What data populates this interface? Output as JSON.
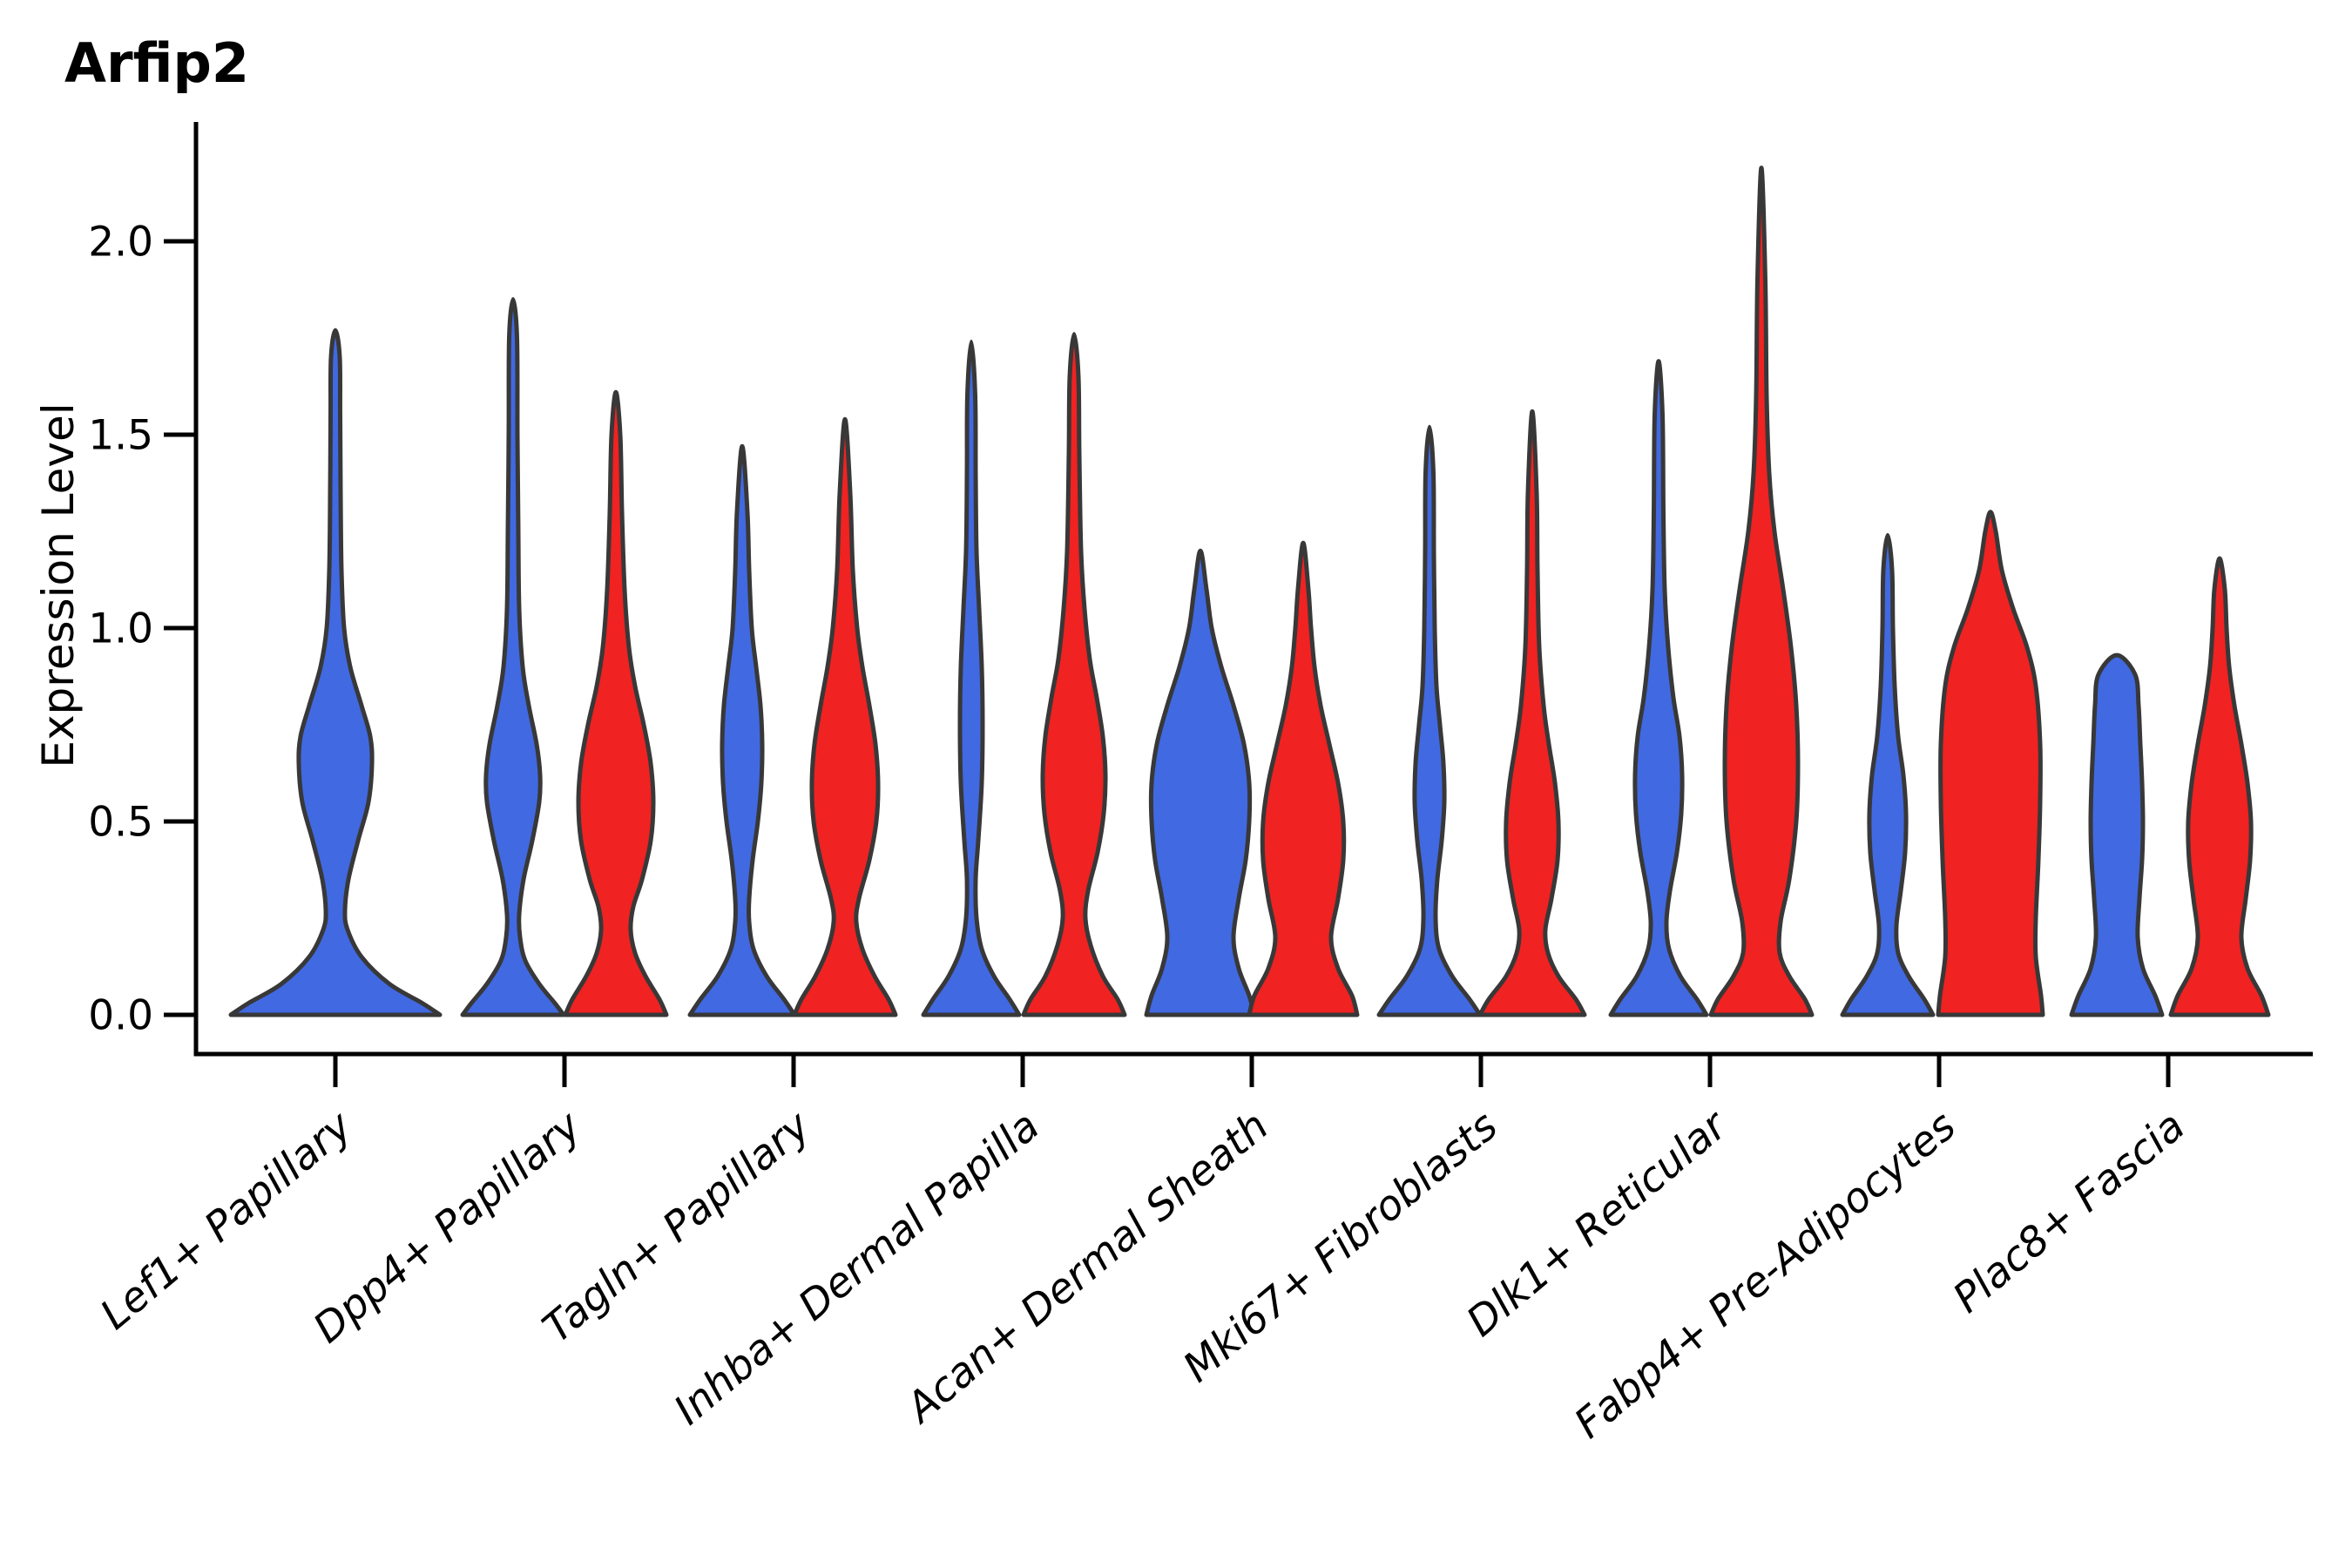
{
  "title": "Arfip2",
  "axes": {
    "ylabel": "Expression Level",
    "ytick_labels": [
      "0.0",
      "0.5",
      "1.0",
      "1.5",
      "2.0"
    ],
    "x_tick_rotation_deg": 40
  },
  "colors": {
    "blue_fill": "#4169E1",
    "red_fill": "#F02222",
    "outline": "#383838",
    "axis": "#000000",
    "background": "#FFFFFF"
  },
  "chart_data": {
    "type": "violin",
    "title": "Arfip2",
    "xlabel": "",
    "ylabel": "Expression Level",
    "ylim": [
      0.0,
      2.3
    ],
    "yticks": [
      0.0,
      0.5,
      1.0,
      1.5,
      2.0
    ],
    "grid": false,
    "legend": "none",
    "categories": [
      "Lef1+ Papillary",
      "Dpp4+ Papillary",
      "Tagln+ Papillary",
      "Inhba+ Dermal Papilla",
      "Acan+ Dermal Sheath",
      "Mki67+ Fibroblasts",
      "Dlk1+ Reticular",
      "Fabp4+ Pre-Adipocytes",
      "Plac8+ Fascia"
    ],
    "series": [
      {
        "name": "blue",
        "color": "#4169E1"
      },
      {
        "name": "red",
        "color": "#F02222"
      }
    ],
    "violins": [
      {
        "category_index": 0,
        "series": "blue",
        "position": "center",
        "max_value": 1.77,
        "profile": [
          [
            0,
            120
          ],
          [
            0.03,
            100
          ],
          [
            0.08,
            62
          ],
          [
            0.15,
            30
          ],
          [
            0.22,
            14
          ],
          [
            0.27,
            11
          ],
          [
            0.35,
            15
          ],
          [
            0.45,
            26
          ],
          [
            0.55,
            38
          ],
          [
            0.65,
            42
          ],
          [
            0.72,
            40
          ],
          [
            0.8,
            30
          ],
          [
            0.9,
            17
          ],
          [
            1.0,
            10
          ],
          [
            1.15,
            7
          ],
          [
            1.35,
            6
          ],
          [
            1.55,
            5.5
          ],
          [
            1.7,
            5
          ],
          [
            1.77,
            0
          ]
        ]
      },
      {
        "category_index": 1,
        "series": "blue",
        "position": "left",
        "max_value": 1.85,
        "profile": [
          [
            0,
            58
          ],
          [
            0.03,
            48
          ],
          [
            0.08,
            30
          ],
          [
            0.14,
            14
          ],
          [
            0.2,
            8
          ],
          [
            0.26,
            7
          ],
          [
            0.35,
            12
          ],
          [
            0.45,
            22
          ],
          [
            0.55,
            30
          ],
          [
            0.62,
            31
          ],
          [
            0.7,
            27
          ],
          [
            0.8,
            18
          ],
          [
            0.9,
            11
          ],
          [
            1.05,
            7
          ],
          [
            1.25,
            6
          ],
          [
            1.5,
            5
          ],
          [
            1.75,
            4.5
          ],
          [
            1.85,
            0
          ]
        ]
      },
      {
        "category_index": 1,
        "series": "red",
        "position": "right",
        "max_value": 1.61,
        "profile": [
          [
            0,
            58
          ],
          [
            0.04,
            50
          ],
          [
            0.1,
            34
          ],
          [
            0.16,
            22
          ],
          [
            0.22,
            17
          ],
          [
            0.28,
            20
          ],
          [
            0.35,
            30
          ],
          [
            0.45,
            40
          ],
          [
            0.55,
            43
          ],
          [
            0.65,
            40
          ],
          [
            0.75,
            32
          ],
          [
            0.85,
            22
          ],
          [
            0.95,
            15
          ],
          [
            1.1,
            10
          ],
          [
            1.3,
            7
          ],
          [
            1.5,
            5
          ],
          [
            1.61,
            0
          ]
        ]
      },
      {
        "category_index": 2,
        "series": "blue",
        "position": "left",
        "max_value": 1.47,
        "profile": [
          [
            0,
            60
          ],
          [
            0.04,
            48
          ],
          [
            0.1,
            28
          ],
          [
            0.17,
            13
          ],
          [
            0.24,
            8
          ],
          [
            0.3,
            8
          ],
          [
            0.4,
            12
          ],
          [
            0.5,
            18
          ],
          [
            0.6,
            22
          ],
          [
            0.7,
            23
          ],
          [
            0.8,
            21
          ],
          [
            0.9,
            16
          ],
          [
            1.0,
            11
          ],
          [
            1.15,
            8
          ],
          [
            1.3,
            6
          ],
          [
            1.47,
            0
          ]
        ]
      },
      {
        "category_index": 2,
        "series": "red",
        "position": "right",
        "max_value": 1.54,
        "profile": [
          [
            0,
            58
          ],
          [
            0.04,
            50
          ],
          [
            0.1,
            34
          ],
          [
            0.17,
            20
          ],
          [
            0.24,
            13
          ],
          [
            0.3,
            16
          ],
          [
            0.4,
            28
          ],
          [
            0.5,
            36
          ],
          [
            0.6,
            38
          ],
          [
            0.7,
            35
          ],
          [
            0.8,
            28
          ],
          [
            0.9,
            20
          ],
          [
            1.0,
            14
          ],
          [
            1.15,
            9
          ],
          [
            1.35,
            6
          ],
          [
            1.54,
            0
          ]
        ]
      },
      {
        "category_index": 3,
        "series": "blue",
        "position": "left",
        "max_value": 1.74,
        "profile": [
          [
            0,
            55
          ],
          [
            0.04,
            44
          ],
          [
            0.1,
            26
          ],
          [
            0.17,
            12
          ],
          [
            0.25,
            6
          ],
          [
            0.35,
            5
          ],
          [
            0.45,
            8
          ],
          [
            0.6,
            12
          ],
          [
            0.75,
            13
          ],
          [
            0.9,
            12
          ],
          [
            1.05,
            9
          ],
          [
            1.2,
            6
          ],
          [
            1.4,
            5
          ],
          [
            1.6,
            4.5
          ],
          [
            1.74,
            0
          ]
        ]
      },
      {
        "category_index": 3,
        "series": "red",
        "position": "right",
        "max_value": 1.76,
        "profile": [
          [
            0,
            58
          ],
          [
            0.04,
            50
          ],
          [
            0.1,
            33
          ],
          [
            0.18,
            19
          ],
          [
            0.25,
            13
          ],
          [
            0.32,
            16
          ],
          [
            0.42,
            27
          ],
          [
            0.52,
            34
          ],
          [
            0.62,
            36
          ],
          [
            0.72,
            33
          ],
          [
            0.82,
            26
          ],
          [
            0.92,
            18
          ],
          [
            1.05,
            12
          ],
          [
            1.2,
            8
          ],
          [
            1.45,
            6
          ],
          [
            1.65,
            5
          ],
          [
            1.76,
            0
          ]
        ]
      },
      {
        "category_index": 4,
        "series": "blue",
        "position": "left",
        "max_value": 1.2,
        "profile": [
          [
            0,
            62
          ],
          [
            0.05,
            56
          ],
          [
            0.12,
            44
          ],
          [
            0.2,
            38
          ],
          [
            0.3,
            44
          ],
          [
            0.4,
            52
          ],
          [
            0.5,
            56
          ],
          [
            0.6,
            56
          ],
          [
            0.7,
            50
          ],
          [
            0.8,
            38
          ],
          [
            0.9,
            24
          ],
          [
            1.0,
            13
          ],
          [
            1.1,
            7
          ],
          [
            1.2,
            0
          ]
        ]
      },
      {
        "category_index": 4,
        "series": "red",
        "position": "right",
        "max_value": 1.22,
        "profile": [
          [
            0,
            62
          ],
          [
            0.05,
            56
          ],
          [
            0.12,
            40
          ],
          [
            0.2,
            32
          ],
          [
            0.3,
            40
          ],
          [
            0.4,
            46
          ],
          [
            0.5,
            46
          ],
          [
            0.6,
            40
          ],
          [
            0.7,
            30
          ],
          [
            0.8,
            20
          ],
          [
            0.9,
            13
          ],
          [
            1.0,
            9
          ],
          [
            1.1,
            6
          ],
          [
            1.22,
            0
          ]
        ]
      },
      {
        "category_index": 5,
        "series": "blue",
        "position": "left",
        "max_value": 1.52,
        "profile": [
          [
            0,
            58
          ],
          [
            0.04,
            46
          ],
          [
            0.1,
            26
          ],
          [
            0.17,
            11
          ],
          [
            0.25,
            7
          ],
          [
            0.35,
            9
          ],
          [
            0.45,
            14
          ],
          [
            0.55,
            17
          ],
          [
            0.65,
            16
          ],
          [
            0.75,
            12
          ],
          [
            0.85,
            8
          ],
          [
            1.0,
            6
          ],
          [
            1.2,
            5
          ],
          [
            1.4,
            4.5
          ],
          [
            1.52,
            0
          ]
        ]
      },
      {
        "category_index": 5,
        "series": "red",
        "position": "right",
        "max_value": 1.56,
        "profile": [
          [
            0,
            60
          ],
          [
            0.04,
            50
          ],
          [
            0.1,
            30
          ],
          [
            0.16,
            18
          ],
          [
            0.22,
            15
          ],
          [
            0.3,
            22
          ],
          [
            0.4,
            29
          ],
          [
            0.5,
            30
          ],
          [
            0.6,
            26
          ],
          [
            0.7,
            19
          ],
          [
            0.8,
            13
          ],
          [
            0.95,
            8
          ],
          [
            1.15,
            6
          ],
          [
            1.35,
            5
          ],
          [
            1.56,
            0
          ]
        ]
      },
      {
        "category_index": 6,
        "series": "blue",
        "position": "left",
        "max_value": 1.69,
        "profile": [
          [
            0,
            55
          ],
          [
            0.04,
            44
          ],
          [
            0.1,
            25
          ],
          [
            0.17,
            12
          ],
          [
            0.24,
            9
          ],
          [
            0.32,
            13
          ],
          [
            0.42,
            21
          ],
          [
            0.52,
            26
          ],
          [
            0.62,
            27
          ],
          [
            0.72,
            24
          ],
          [
            0.82,
            17
          ],
          [
            0.95,
            11
          ],
          [
            1.1,
            7
          ],
          [
            1.3,
            5.5
          ],
          [
            1.55,
            4.5
          ],
          [
            1.69,
            0
          ]
        ]
      },
      {
        "category_index": 6,
        "series": "red",
        "position": "right",
        "max_value": 2.19,
        "profile": [
          [
            0,
            58
          ],
          [
            0.04,
            50
          ],
          [
            0.1,
            32
          ],
          [
            0.16,
            21
          ],
          [
            0.24,
            22
          ],
          [
            0.35,
            32
          ],
          [
            0.5,
            40
          ],
          [
            0.65,
            42
          ],
          [
            0.8,
            40
          ],
          [
            0.95,
            34
          ],
          [
            1.1,
            25
          ],
          [
            1.25,
            15
          ],
          [
            1.4,
            9
          ],
          [
            1.6,
            6
          ],
          [
            1.9,
            4.5
          ],
          [
            2.19,
            0
          ]
        ]
      },
      {
        "category_index": 7,
        "series": "blue",
        "position": "left",
        "max_value": 1.24,
        "profile": [
          [
            0,
            52
          ],
          [
            0.04,
            42
          ],
          [
            0.1,
            24
          ],
          [
            0.16,
            12
          ],
          [
            0.23,
            10
          ],
          [
            0.32,
            15
          ],
          [
            0.42,
            20
          ],
          [
            0.52,
            21
          ],
          [
            0.62,
            18
          ],
          [
            0.72,
            12
          ],
          [
            0.85,
            8
          ],
          [
            1.0,
            6
          ],
          [
            1.15,
            5
          ],
          [
            1.24,
            0
          ]
        ]
      },
      {
        "category_index": 7,
        "series": "red",
        "position": "right",
        "max_value": 1.3,
        "profile": [
          [
            0,
            60
          ],
          [
            0.05,
            58
          ],
          [
            0.15,
            52
          ],
          [
            0.25,
            52
          ],
          [
            0.4,
            55
          ],
          [
            0.55,
            57
          ],
          [
            0.7,
            57
          ],
          [
            0.85,
            52
          ],
          [
            0.95,
            42
          ],
          [
            1.05,
            26
          ],
          [
            1.15,
            13
          ],
          [
            1.25,
            6
          ],
          [
            1.3,
            0
          ]
        ]
      },
      {
        "category_index": 8,
        "series": "blue",
        "position": "left",
        "max_value": 0.93,
        "profile": [
          [
            0,
            52
          ],
          [
            0.05,
            44
          ],
          [
            0.12,
            30
          ],
          [
            0.2,
            24
          ],
          [
            0.3,
            26
          ],
          [
            0.4,
            29
          ],
          [
            0.5,
            30
          ],
          [
            0.6,
            29
          ],
          [
            0.7,
            27
          ],
          [
            0.8,
            25
          ],
          [
            0.88,
            21
          ],
          [
            0.93,
            0
          ]
        ]
      },
      {
        "category_index": 8,
        "series": "red",
        "position": "right",
        "max_value": 1.18,
        "profile": [
          [
            0,
            56
          ],
          [
            0.05,
            48
          ],
          [
            0.12,
            32
          ],
          [
            0.2,
            25
          ],
          [
            0.3,
            30
          ],
          [
            0.4,
            35
          ],
          [
            0.5,
            36
          ],
          [
            0.6,
            32
          ],
          [
            0.7,
            25
          ],
          [
            0.8,
            17
          ],
          [
            0.9,
            11
          ],
          [
            1.0,
            8
          ],
          [
            1.1,
            6
          ],
          [
            1.18,
            0
          ]
        ]
      }
    ]
  }
}
